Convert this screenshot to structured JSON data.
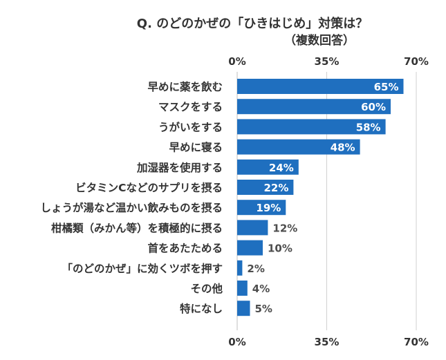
{
  "chart_data": {
    "type": "bar",
    "orientation": "horizontal",
    "title": "Q. のどのかぜの「ひきはじめ」対策は？",
    "subtitle": "（複数回答）",
    "categories": [
      "早めに薬を飲む",
      "マスクをする",
      "うがいをする",
      "早めに寝る",
      "加湿器を使用する",
      "ビタミンCなどのサプリを摂る",
      "しょうが湯など温かい飲みものを摂る",
      "柑橘類（みかん等）を積極的に摂る",
      "首をあたためる",
      "「のどのかぜ」に効くツボを押す",
      "その他",
      "特になし"
    ],
    "values": [
      65,
      60,
      58,
      48,
      24,
      22,
      19,
      12,
      10,
      2,
      4,
      5
    ],
    "value_labels": [
      "65%",
      "60%",
      "58%",
      "48%",
      "24%",
      "22%",
      "19%",
      "12%",
      "10%",
      "2%",
      "4%",
      "5%"
    ],
    "xlim": [
      0,
      70
    ],
    "x_ticks": [
      0,
      35,
      70
    ],
    "x_tick_labels": [
      "0%",
      "35%",
      "70%"
    ],
    "grid": true,
    "bar_color": "#1f6fbf",
    "label_color": "#4d4d4d"
  }
}
